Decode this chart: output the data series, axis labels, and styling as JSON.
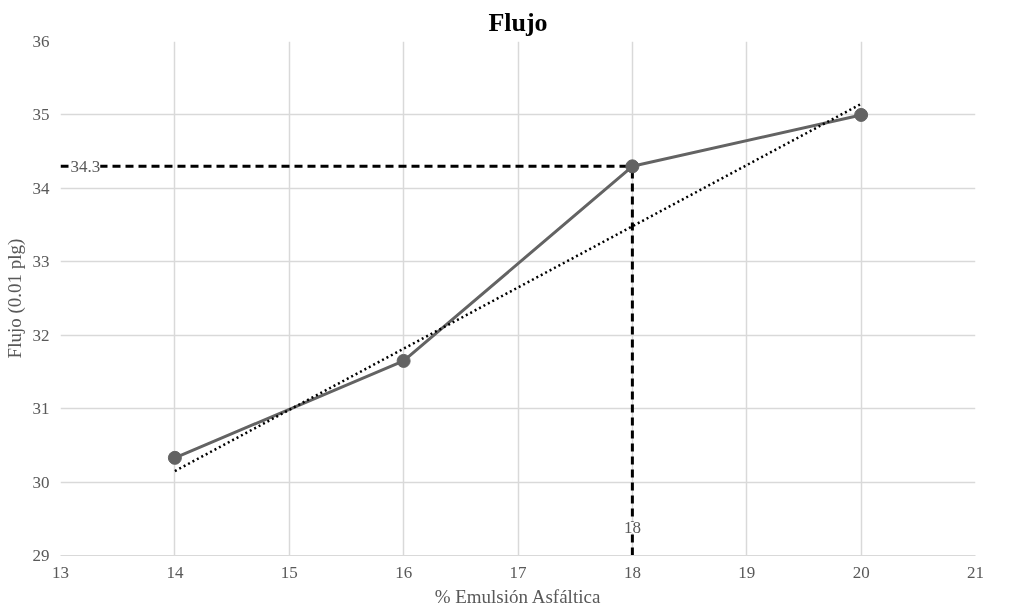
{
  "chart_data": {
    "type": "line",
    "title": "Flujo",
    "xlabel": "% Emulsión Asfáltica",
    "ylabel": "Flujo (0.01 plg)",
    "x": [
      14,
      16,
      18,
      20
    ],
    "series": [
      {
        "color": "#636363",
        "values": [
          30.33,
          31.65,
          34.3,
          35.0
        ],
        "marker": "circle",
        "line_style": "solid"
      },
      {
        "type": "line",
        "x": [
          14,
          20
        ],
        "color": "#000000",
        "values": [
          30.15,
          35.15
        ],
        "marker": "none",
        "line_style": "dotted"
      }
    ],
    "xlim": [
      13,
      21
    ],
    "xticks": [
      13,
      14,
      15,
      16,
      17,
      18,
      19,
      20,
      21
    ],
    "ylim": [
      29,
      36
    ],
    "yticks": [
      29,
      30,
      31,
      32,
      33,
      34,
      35,
      36
    ],
    "grid": true,
    "ref_lines": [
      {
        "axis": "y",
        "value": 34.3,
        "label": "34.3",
        "color": "#000000",
        "line_style": "dashed"
      },
      {
        "axis": "x",
        "value": 18,
        "label": "18",
        "color": "#000000",
        "line_style": "dashed"
      }
    ]
  }
}
